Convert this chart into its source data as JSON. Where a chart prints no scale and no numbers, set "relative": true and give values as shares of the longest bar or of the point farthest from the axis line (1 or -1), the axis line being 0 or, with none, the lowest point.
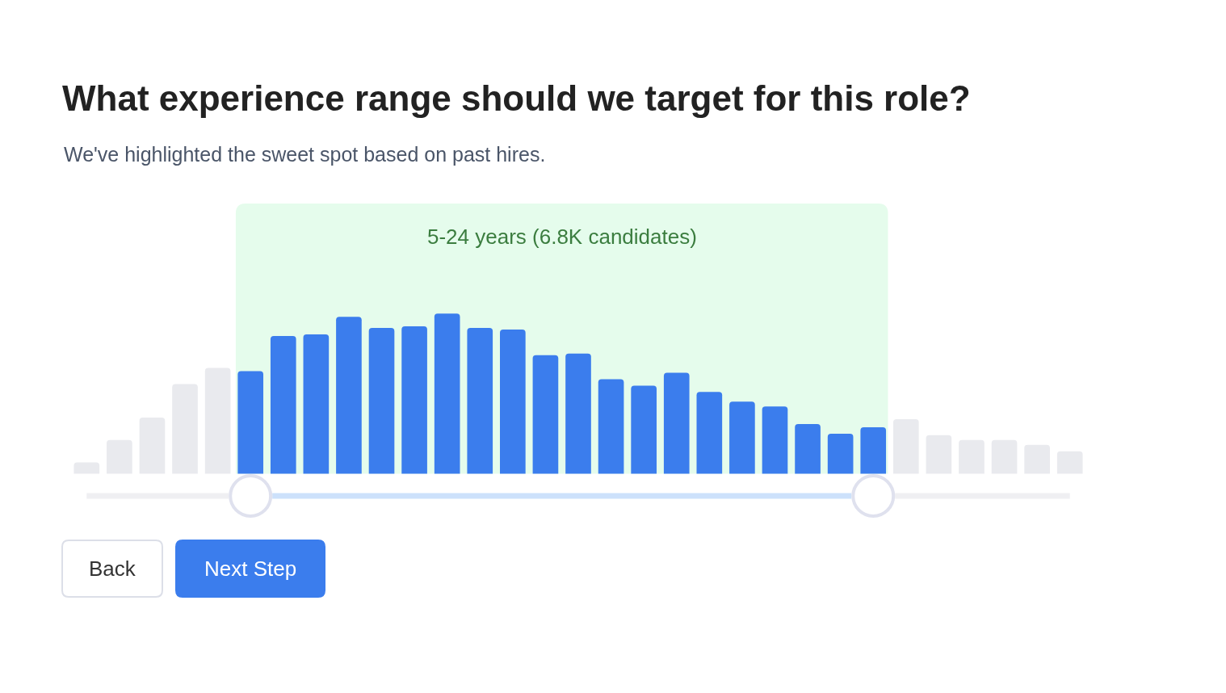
{
  "chart_data": {
    "type": "bar",
    "title": "What experience range should we target for this role?",
    "subtitle": "We've highlighted the sweet spot based on past hires.",
    "annotations": [
      "5-24 years (6.8K candidates)",
      "Back",
      "Next Step"
    ],
    "relative": true,
    "categories": [
      null,
      null,
      null,
      null,
      null,
      null,
      null,
      null,
      null,
      null,
      null,
      null,
      null,
      null,
      null,
      null,
      null,
      null,
      null,
      null,
      null,
      null,
      null,
      null,
      null,
      null,
      null,
      null,
      null,
      null,
      null
    ],
    "values": [
      0.07,
      0.21,
      0.35,
      0.56,
      0.66,
      0.64,
      0.86,
      0.87,
      0.98,
      0.91,
      0.92,
      1,
      0.91,
      0.9,
      0.74,
      0.75,
      0.59,
      0.55,
      0.63,
      0.51,
      0.45,
      0.42,
      0.31,
      0.25,
      0.29,
      0.34,
      0.24,
      0.21,
      0.21,
      0.18,
      0.14
    ],
    "colors": [
      "#e9eaee",
      "#e9eaee",
      "#e9eaee",
      "#e9eaee",
      "#e9eaee",
      "#3b7ded",
      "#3b7ded",
      "#3b7ded",
      "#3b7ded",
      "#3b7ded",
      "#3b7ded",
      "#3b7ded",
      "#3b7ded",
      "#3b7ded",
      "#3b7ded",
      "#3b7ded",
      "#3b7ded",
      "#3b7ded",
      "#3b7ded",
      "#3b7ded",
      "#3b7ded",
      "#3b7ded",
      "#3b7ded",
      "#3b7ded",
      "#3b7ded",
      "#e9eaee",
      "#e9eaee",
      "#e9eaee",
      "#e9eaee",
      "#e9eaee",
      "#e9eaee"
    ]
  }
}
